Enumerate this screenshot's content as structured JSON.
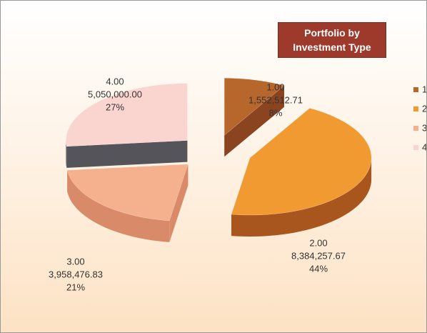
{
  "chart_data": {
    "type": "pie3d",
    "title": "Portfolio by Investment Type",
    "categories": [
      "1",
      "2",
      "3",
      "4"
    ],
    "slice_labels": [
      "1.00",
      "2.00",
      "3.00",
      "4.00"
    ],
    "values": [
      1552512.71,
      8384257.67,
      3958476.83,
      5050000.0
    ],
    "value_labels": [
      "1,552,512.71",
      "8,384,257.67",
      "3,958,476.83",
      "5,050,000.00"
    ],
    "percents": [
      8,
      44,
      21,
      27
    ],
    "percent_labels": [
      "8%",
      "44%",
      "21%",
      "27%"
    ],
    "colors": [
      "#b8672c",
      "#f29a32",
      "#f5b08e",
      "#fad5d0"
    ],
    "side_colors": [
      "#8a4520",
      "#a8561e",
      "#d98a68",
      "#55545a"
    ],
    "legend": "right"
  }
}
